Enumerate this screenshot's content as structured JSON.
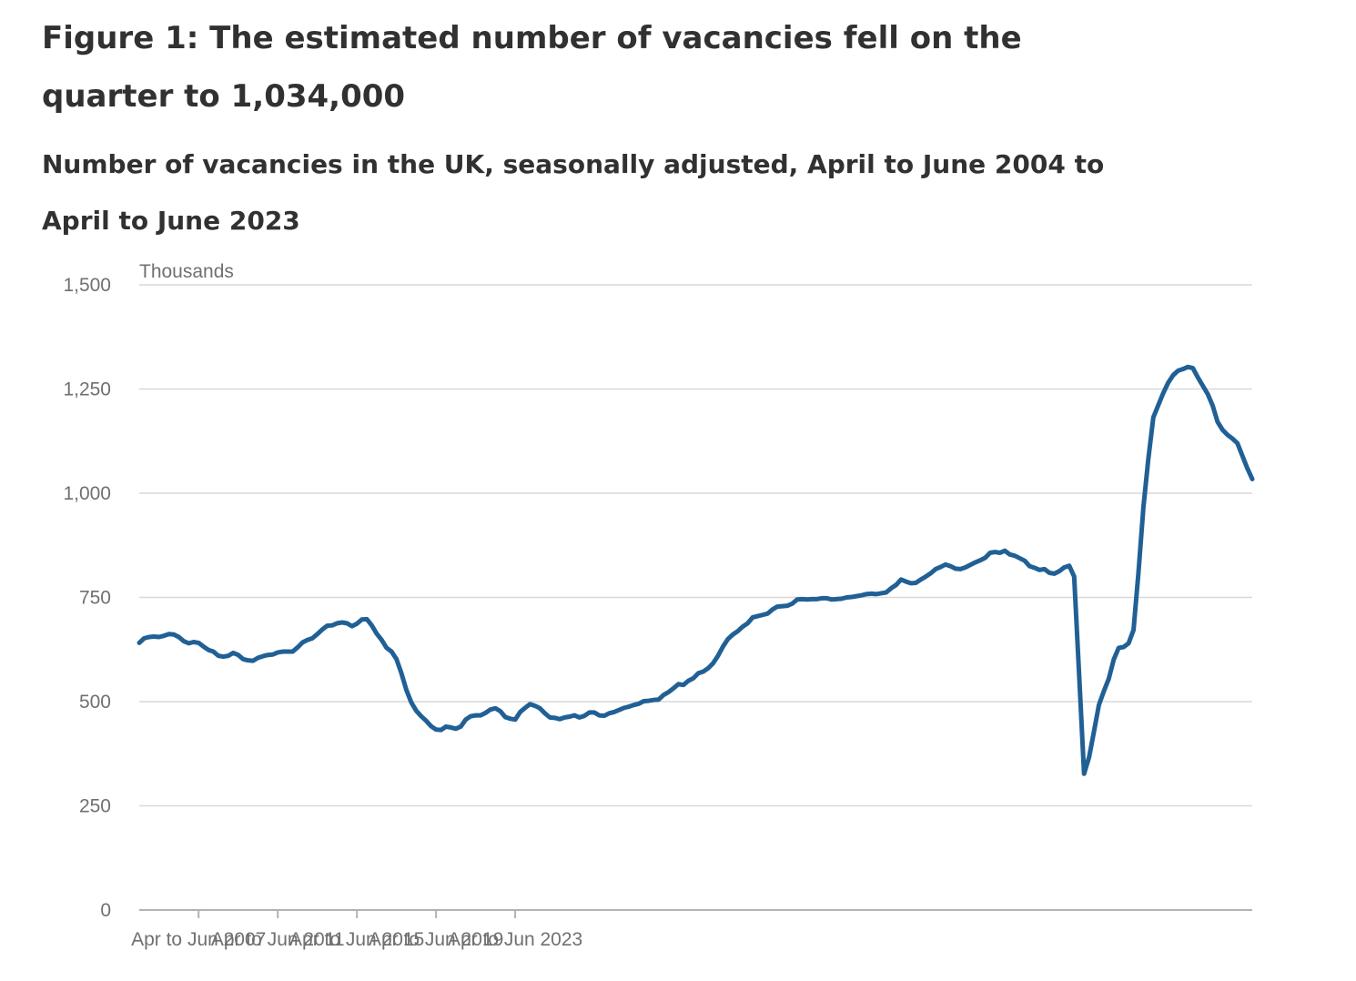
{
  "title": "Figure 1: The estimated number of vacancies fell on the quarter to 1,034,000",
  "subtitle": "Number of vacancies in the UK, seasonally adjusted, April to June 2004 to April to June 2023",
  "chart_data": {
    "type": "line",
    "title": "Figure 1: The estimated number of vacancies fell on the quarter to 1,034,000",
    "subtitle": "Number of vacancies in the UK, seasonally adjusted, April to June 2004 to April to June 2023",
    "ylabel": "Thousands",
    "xlabel": "",
    "ylim": [
      0,
      1500
    ],
    "y_ticks": [
      "0",
      "250",
      "500",
      "750",
      "1,000",
      "1,250",
      "1,500"
    ],
    "x_ticks": [
      "Apr to Jun 2007",
      "Apr to Jun 2011",
      "Apr to Jun 2015",
      "Apr to Jun 2019",
      "Apr to Jun 2023"
    ],
    "grid": true,
    "legend": "none",
    "series_color": "#206095",
    "x_range": [
      "Apr to Jun 2004",
      "Apr to Jun 2023"
    ],
    "series": [
      {
        "values": [
          641,
          652,
          655,
          656,
          655,
          658,
          662,
          661,
          655,
          645,
          640,
          643,
          641,
          632,
          624,
          620,
          610,
          608,
          610,
          617,
          612,
          602,
          599,
          598,
          605,
          609,
          612,
          613,
          618,
          620,
          620,
          620,
          630,
          642,
          648,
          652,
          662,
          673,
          682,
          683,
          688,
          690,
          688,
          681,
          687,
          697,
          698,
          683,
          663,
          648,
          629,
          620,
          602,
          568,
          528,
          498,
          478,
          465,
          454,
          441,
          433,
          432,
          440,
          438,
          435,
          440,
          457,
          465,
          467,
          467,
          473,
          481,
          484,
          477,
          463,
          459,
          457,
          475,
          485,
          494,
          490,
          484,
          472,
          462,
          461,
          458,
          462,
          464,
          467,
          462,
          466,
          474,
          474,
          467,
          466,
          472,
          475,
          480,
          485,
          488,
          492,
          495,
          501,
          502,
          504,
          505,
          516,
          523,
          532,
          542,
          540,
          550,
          556,
          568,
          572,
          580,
          592,
          610,
          632,
          650,
          661,
          669,
          680,
          688,
          702,
          705,
          708,
          711,
          721,
          728,
          729,
          730,
          735,
          745,
          746,
          745,
          746,
          746,
          748,
          748,
          745,
          746,
          747,
          750,
          751,
          753,
          755,
          758,
          759,
          758,
          760,
          762,
          772,
          780,
          793,
          788,
          784,
          785,
          793,
          800,
          808,
          818,
          823,
          829,
          825,
          819,
          818,
          822,
          828,
          834,
          839,
          845,
          857,
          859,
          857,
          862,
          853,
          850,
          844,
          838,
          825,
          821,
          816,
          818,
          809,
          807,
          813,
          822,
          826,
          800,
          565,
          327,
          366,
          428,
          492,
          525,
          555,
          601,
          629,
          631,
          640,
          672,
          810,
          967,
          1083,
          1182,
          1211,
          1240,
          1265,
          1283,
          1294,
          1298,
          1303,
          1300,
          1278,
          1258,
          1238,
          1210,
          1171,
          1152,
          1140,
          1131,
          1120,
          1090,
          1060,
          1034
        ]
      }
    ]
  }
}
